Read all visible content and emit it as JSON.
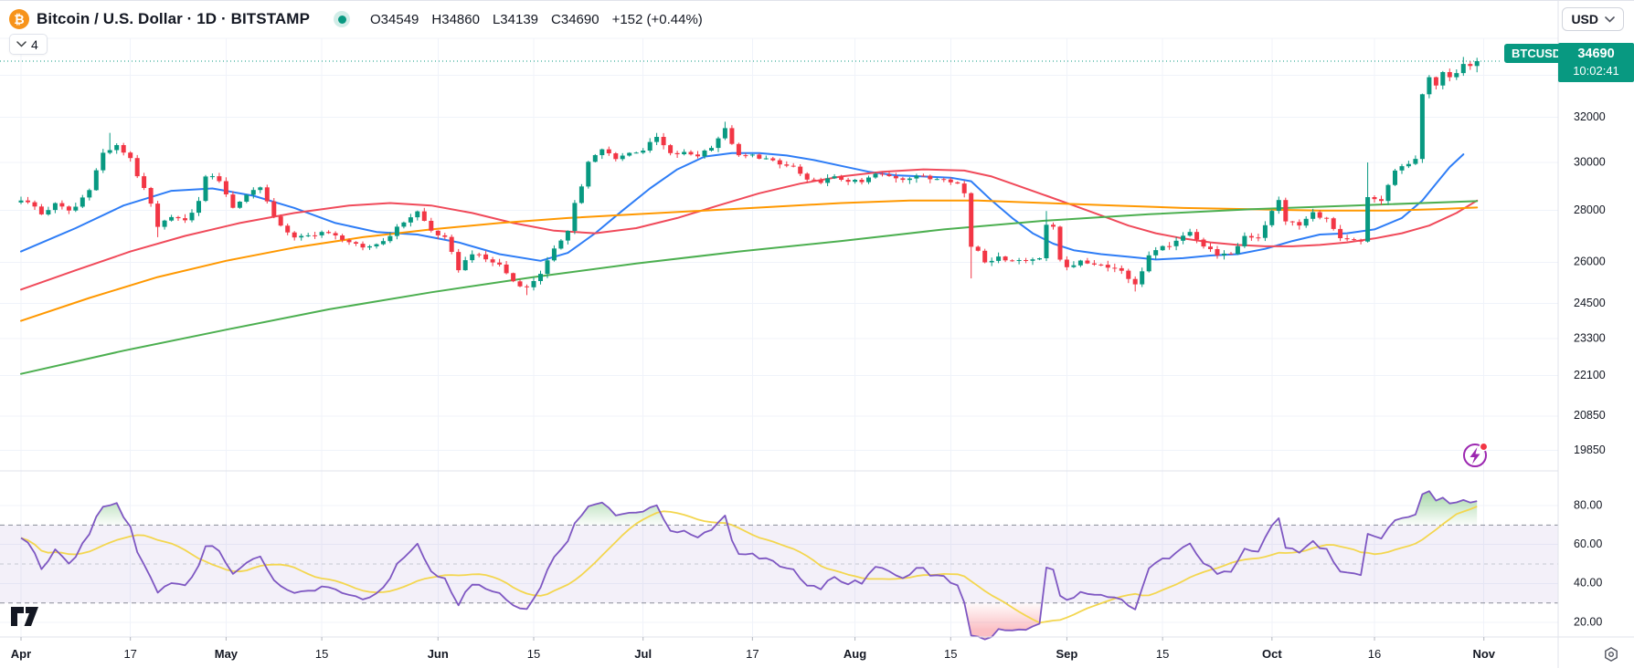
{
  "header": {
    "symbol_title": "Bitcoin / U.S. Dollar · 1D · BITSTAMP",
    "ohlc": {
      "o": "O34549",
      "h": "H34860",
      "l": "L34139",
      "c": "C34690",
      "change": "+152 (+0.44%)"
    },
    "currency_button": "USD"
  },
  "toolbar": {
    "indicators_collapsed_count": "4"
  },
  "price_axis": {
    "current_price_label": {
      "symbol": "BTCUSD",
      "price": "34690",
      "time": "10:02:41"
    },
    "labels": [
      "32000",
      "30000",
      "28000",
      "26000",
      "24500",
      "23300",
      "22100",
      "20850",
      "19850"
    ],
    "unlabeled_gridline_prices": [
      34000
    ]
  },
  "rsi_axis": {
    "labels": [
      "80.00",
      "60.00",
      "40.00",
      "20.00"
    ]
  },
  "time_axis": {
    "labels": [
      {
        "text": "Apr",
        "day": 0,
        "major": true
      },
      {
        "text": "17",
        "day": 16,
        "major": false
      },
      {
        "text": "May",
        "day": 30,
        "major": true
      },
      {
        "text": "15",
        "day": 44,
        "major": false
      },
      {
        "text": "Jun",
        "day": 61,
        "major": true
      },
      {
        "text": "15",
        "day": 75,
        "major": false
      },
      {
        "text": "Jul",
        "day": 91,
        "major": true
      },
      {
        "text": "17",
        "day": 107,
        "major": false
      },
      {
        "text": "Aug",
        "day": 122,
        "major": true
      },
      {
        "text": "15",
        "day": 136,
        "major": false
      },
      {
        "text": "Sep",
        "day": 153,
        "major": true
      },
      {
        "text": "15",
        "day": 167,
        "major": false
      },
      {
        "text": "Oct",
        "day": 183,
        "major": true
      },
      {
        "text": "16",
        "day": 198,
        "major": false
      },
      {
        "text": "Nov",
        "day": 214,
        "major": true
      }
    ]
  },
  "colors": {
    "up": "#089981",
    "down": "#f23645",
    "ma_fast_blue": "#2e7df6",
    "ma_mid_red": "#f04a5a",
    "ma_slow_orange": "#ff9800",
    "ma_long_green": "#4caf50",
    "rsi_line": "#7e57c2",
    "rsi_signal": "#f3d64f",
    "band_fill": "rgba(126,87,194,0.09)",
    "band_dash": "#8a8e99",
    "band_mid_dash": "#c5c8d1",
    "overbought_fill": "#4caf50",
    "oversold_fill": "#f23645",
    "grid": "#f0f3fa",
    "separator": "#e0e3eb",
    "text": "#131722",
    "bitcoin_orange": "#f7931a",
    "current_price_line": "#089981"
  },
  "chart_data": {
    "type": "candlestick",
    "symbol": "BTCUSD",
    "timeframe": "1D",
    "exchange": "BITSTAMP",
    "price_scale_type": "log",
    "days_span": 214,
    "last_candle": {
      "open": 34549,
      "high": 34860,
      "low": 34139,
      "close": 34690
    },
    "close_keyframes": [
      [
        0,
        28450
      ],
      [
        2,
        28150
      ],
      [
        3,
        27850
      ],
      [
        5,
        28250
      ],
      [
        7,
        28000
      ],
      [
        8,
        28150
      ],
      [
        10,
        28900
      ],
      [
        12,
        30400
      ],
      [
        14,
        30700
      ],
      [
        16,
        30200
      ],
      [
        17,
        29450
      ],
      [
        19,
        28250
      ],
      [
        20,
        27300
      ],
      [
        22,
        27800
      ],
      [
        24,
        27550
      ],
      [
        26,
        28350
      ],
      [
        27,
        29450
      ],
      [
        29,
        29250
      ],
      [
        31,
        28100
      ],
      [
        33,
        28650
      ],
      [
        35,
        29000
      ],
      [
        37,
        27700
      ],
      [
        40,
        26900
      ],
      [
        42,
        27000
      ],
      [
        44,
        27150
      ],
      [
        47,
        26900
      ],
      [
        50,
        26500
      ],
      [
        53,
        26800
      ],
      [
        56,
        27550
      ],
      [
        58,
        27950
      ],
      [
        60,
        27200
      ],
      [
        62,
        26900
      ],
      [
        64,
        25750
      ],
      [
        66,
        26350
      ],
      [
        68,
        26100
      ],
      [
        70,
        25900
      ],
      [
        72,
        25300
      ],
      [
        74,
        25050
      ],
      [
        76,
        25600
      ],
      [
        78,
        26450
      ],
      [
        80,
        27250
      ],
      [
        81,
        28300
      ],
      [
        82,
        29000
      ],
      [
        83,
        30000
      ],
      [
        85,
        30550
      ],
      [
        87,
        30200
      ],
      [
        89,
        30400
      ],
      [
        91,
        30550
      ],
      [
        93,
        31100
      ],
      [
        95,
        30350
      ],
      [
        97,
        30400
      ],
      [
        99,
        30300
      ],
      [
        101,
        30700
      ],
      [
        103,
        31450
      ],
      [
        105,
        30250
      ],
      [
        107,
        30300
      ],
      [
        109,
        30150
      ],
      [
        111,
        29900
      ],
      [
        113,
        29800
      ],
      [
        115,
        29200
      ],
      [
        117,
        29200
      ],
      [
        119,
        29350
      ],
      [
        121,
        29230
      ],
      [
        123,
        29150
      ],
      [
        125,
        29500
      ],
      [
        127,
        29400
      ],
      [
        129,
        29300
      ],
      [
        131,
        29450
      ],
      [
        133,
        29300
      ],
      [
        135,
        29350
      ],
      [
        137,
        29100
      ],
      [
        138,
        28700
      ],
      [
        139,
        26600
      ],
      [
        140,
        26450
      ],
      [
        141,
        26050
      ],
      [
        143,
        26150
      ],
      [
        145,
        26100
      ],
      [
        147,
        26050
      ],
      [
        149,
        26200
      ],
      [
        150,
        27450
      ],
      [
        151,
        27300
      ],
      [
        152,
        26100
      ],
      [
        153,
        25850
      ],
      [
        155,
        26000
      ],
      [
        157,
        25950
      ],
      [
        159,
        25850
      ],
      [
        161,
        25700
      ],
      [
        163,
        25150
      ],
      [
        165,
        26250
      ],
      [
        167,
        26550
      ],
      [
        169,
        26750
      ],
      [
        171,
        27200
      ],
      [
        173,
        26600
      ],
      [
        175,
        26300
      ],
      [
        177,
        26250
      ],
      [
        179,
        27000
      ],
      [
        181,
        26950
      ],
      [
        183,
        27950
      ],
      [
        184,
        28400
      ],
      [
        185,
        27600
      ],
      [
        187,
        27400
      ],
      [
        189,
        27900
      ],
      [
        191,
        27650
      ],
      [
        193,
        26850
      ],
      [
        195,
        26800
      ],
      [
        196,
        26750
      ],
      [
        197,
        28500
      ],
      [
        199,
        28400
      ],
      [
        201,
        29650
      ],
      [
        203,
        29900
      ],
      [
        204,
        30150
      ],
      [
        205,
        33080
      ],
      [
        206,
        33900
      ],
      [
        207,
        33500
      ],
      [
        208,
        34150
      ],
      [
        209,
        33900
      ],
      [
        210,
        34100
      ],
      [
        211,
        34550
      ],
      [
        212,
        34450
      ],
      [
        213,
        34690
      ]
    ],
    "wick_overrides": {
      "13": {
        "high": 31300
      },
      "20": {
        "low": 26950
      },
      "74": {
        "low": 24800
      },
      "103": {
        "high": 31800
      },
      "139": {
        "low": 25400
      },
      "150": {
        "high": 27980
      },
      "163": {
        "low": 24930
      },
      "197": {
        "high": 30000
      },
      "211": {
        "high": 34900
      },
      "213": {
        "high": 34860,
        "low": 34139
      }
    },
    "ma_lines": [
      {
        "name": "ma-fast-blue",
        "color": "#2e7df6",
        "points": [
          [
            0,
            26400
          ],
          [
            8,
            27300
          ],
          [
            15,
            28200
          ],
          [
            22,
            28800
          ],
          [
            28,
            28900
          ],
          [
            34,
            28600
          ],
          [
            40,
            28100
          ],
          [
            46,
            27500
          ],
          [
            52,
            27150
          ],
          [
            58,
            27050
          ],
          [
            64,
            26750
          ],
          [
            70,
            26300
          ],
          [
            76,
            26050
          ],
          [
            80,
            26350
          ],
          [
            84,
            27100
          ],
          [
            88,
            28000
          ],
          [
            92,
            28900
          ],
          [
            96,
            29700
          ],
          [
            100,
            30250
          ],
          [
            104,
            30400
          ],
          [
            108,
            30400
          ],
          [
            112,
            30300
          ],
          [
            116,
            30100
          ],
          [
            120,
            29850
          ],
          [
            124,
            29600
          ],
          [
            128,
            29450
          ],
          [
            132,
            29400
          ],
          [
            136,
            29350
          ],
          [
            139,
            29200
          ],
          [
            142,
            28400
          ],
          [
            145,
            27700
          ],
          [
            148,
            27100
          ],
          [
            151,
            26700
          ],
          [
            154,
            26450
          ],
          [
            158,
            26300
          ],
          [
            162,
            26200
          ],
          [
            166,
            26100
          ],
          [
            170,
            26150
          ],
          [
            174,
            26250
          ],
          [
            178,
            26300
          ],
          [
            182,
            26500
          ],
          [
            186,
            26800
          ],
          [
            190,
            27050
          ],
          [
            194,
            27100
          ],
          [
            198,
            27250
          ],
          [
            202,
            27700
          ],
          [
            205,
            28400
          ],
          [
            207,
            29100
          ],
          [
            209,
            29800
          ],
          [
            211,
            30350
          ]
        ]
      },
      {
        "name": "ma-mid-red",
        "color": "#f04a5a",
        "points": [
          [
            0,
            25000
          ],
          [
            8,
            25700
          ],
          [
            16,
            26400
          ],
          [
            24,
            27000
          ],
          [
            32,
            27500
          ],
          [
            40,
            27900
          ],
          [
            48,
            28200
          ],
          [
            54,
            28300
          ],
          [
            60,
            28200
          ],
          [
            66,
            27900
          ],
          [
            72,
            27500
          ],
          [
            78,
            27200
          ],
          [
            84,
            27100
          ],
          [
            90,
            27300
          ],
          [
            96,
            27700
          ],
          [
            102,
            28200
          ],
          [
            108,
            28700
          ],
          [
            114,
            29100
          ],
          [
            120,
            29400
          ],
          [
            126,
            29600
          ],
          [
            132,
            29700
          ],
          [
            138,
            29650
          ],
          [
            142,
            29400
          ],
          [
            146,
            29000
          ],
          [
            150,
            28600
          ],
          [
            154,
            28200
          ],
          [
            158,
            27800
          ],
          [
            162,
            27400
          ],
          [
            166,
            27100
          ],
          [
            170,
            26900
          ],
          [
            174,
            26750
          ],
          [
            178,
            26650
          ],
          [
            182,
            26600
          ],
          [
            186,
            26600
          ],
          [
            190,
            26650
          ],
          [
            194,
            26750
          ],
          [
            198,
            26900
          ],
          [
            202,
            27100
          ],
          [
            206,
            27400
          ],
          [
            210,
            27900
          ],
          [
            213,
            28400
          ]
        ]
      },
      {
        "name": "ma-slow-orange",
        "color": "#ff9800",
        "points": [
          [
            0,
            23900
          ],
          [
            10,
            24700
          ],
          [
            20,
            25450
          ],
          [
            30,
            26050
          ],
          [
            40,
            26550
          ],
          [
            50,
            26950
          ],
          [
            60,
            27250
          ],
          [
            70,
            27500
          ],
          [
            80,
            27700
          ],
          [
            90,
            27850
          ],
          [
            100,
            28000
          ],
          [
            110,
            28150
          ],
          [
            120,
            28300
          ],
          [
            130,
            28400
          ],
          [
            140,
            28400
          ],
          [
            150,
            28300
          ],
          [
            160,
            28200
          ],
          [
            170,
            28100
          ],
          [
            180,
            28050
          ],
          [
            190,
            28000
          ],
          [
            200,
            28000
          ],
          [
            207,
            28050
          ],
          [
            213,
            28120
          ]
        ]
      },
      {
        "name": "ma-long-green",
        "color": "#4caf50",
        "points": [
          [
            0,
            22150
          ],
          [
            15,
            22900
          ],
          [
            30,
            23600
          ],
          [
            45,
            24300
          ],
          [
            60,
            24900
          ],
          [
            75,
            25450
          ],
          [
            90,
            25950
          ],
          [
            105,
            26400
          ],
          [
            120,
            26800
          ],
          [
            135,
            27250
          ],
          [
            150,
            27600
          ],
          [
            165,
            27850
          ],
          [
            180,
            28050
          ],
          [
            195,
            28200
          ],
          [
            213,
            28380
          ]
        ]
      }
    ],
    "rsi": {
      "period": 14,
      "signal_period": 14,
      "band_upper": 70,
      "band_mid": 50,
      "band_lower": 30,
      "seed_avg_gain": 90,
      "seed_avg_loss": 52,
      "scale_labels": [
        80,
        60,
        40,
        20
      ]
    }
  }
}
